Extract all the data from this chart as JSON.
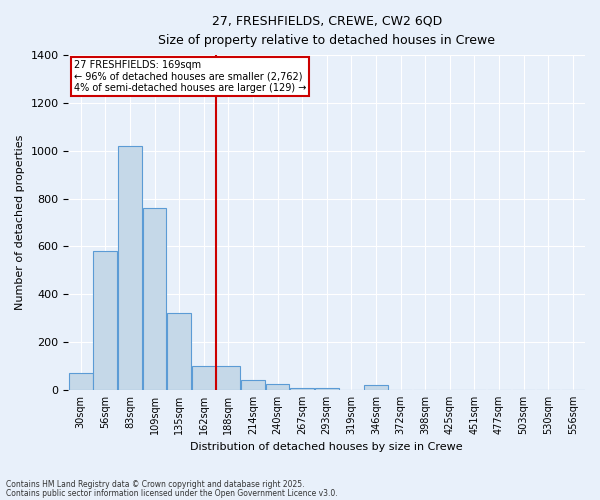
{
  "title1": "27, FRESHFIELDS, CREWE, CW2 6QD",
  "title2": "Size of property relative to detached houses in Crewe",
  "xlabel": "Distribution of detached houses by size in Crewe",
  "ylabel": "Number of detached properties",
  "bin_labels": [
    "30sqm",
    "56sqm",
    "83sqm",
    "109sqm",
    "135sqm",
    "162sqm",
    "188sqm",
    "214sqm",
    "240sqm",
    "267sqm",
    "293sqm",
    "319sqm",
    "346sqm",
    "372sqm",
    "398sqm",
    "425sqm",
    "451sqm",
    "477sqm",
    "503sqm",
    "530sqm",
    "556sqm"
  ],
  "bar_heights": [
    70,
    580,
    1020,
    760,
    320,
    100,
    100,
    40,
    25,
    10,
    10,
    0,
    20,
    0,
    0,
    0,
    0,
    0,
    0,
    0,
    0
  ],
  "bar_color": "#C5D8E8",
  "bar_edge_color": "#5B9BD5",
  "red_line_x": 6,
  "annotation_title": "27 FRESHFIELDS: 169sqm",
  "annotation_line2": "← 96% of detached houses are smaller (2,762)",
  "annotation_line3": "4% of semi-detached houses are larger (129) →",
  "annotation_box_color": "#CC0000",
  "ylim": [
    0,
    1400
  ],
  "footnote1": "Contains HM Land Registry data © Crown copyright and database right 2025.",
  "footnote2": "Contains public sector information licensed under the Open Government Licence v3.0.",
  "background_color": "#E8F0FA",
  "grid_color": "#FFFFFF"
}
